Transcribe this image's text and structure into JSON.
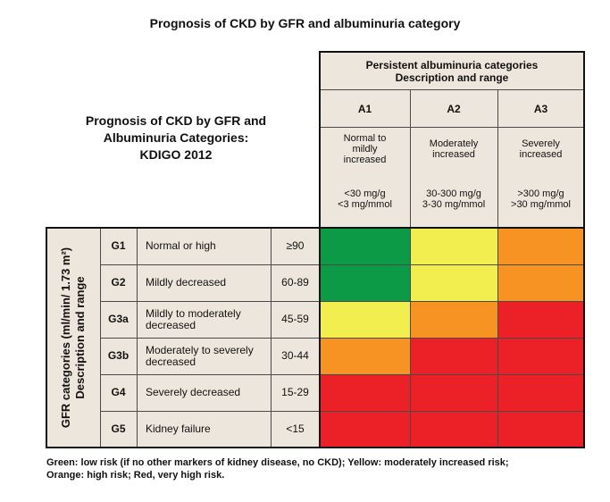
{
  "page_title": "Prognosis of CKD by GFR and albuminuria category",
  "left_header": "Prognosis of CKD by GFR and Albuminuria Categories: KDIGO 2012",
  "albuminuria_header": {
    "line1": "Persistent albuminuria categories",
    "line2": "Description and range"
  },
  "albuminuria": [
    {
      "code": "A1",
      "desc": "Normal to mildly increased",
      "range1": "<30 mg/g",
      "range2": "<3 mg/mmol"
    },
    {
      "code": "A2",
      "desc": "Moderately increased",
      "range1": "30-300 mg/g",
      "range2": "3-30 mg/mmol"
    },
    {
      "code": "A3",
      "desc": "Severely increased",
      "range1": ">300 mg/g",
      "range2": ">30 mg/mmol"
    }
  ],
  "gfr_header": {
    "line1": "GFR categories (ml/min/ 1.73 m²)",
    "line2": "Description and range"
  },
  "gfr": [
    {
      "code": "G1",
      "desc": "Normal or high",
      "range": "≥90",
      "risks": [
        "green",
        "yellow",
        "orange"
      ]
    },
    {
      "code": "G2",
      "desc": "Mildly decreased",
      "range": "60-89",
      "risks": [
        "green",
        "yellow",
        "orange"
      ]
    },
    {
      "code": "G3a",
      "desc": "Mildly to moderately decreased",
      "range": "45-59",
      "risks": [
        "yellow",
        "orange",
        "red"
      ]
    },
    {
      "code": "G3b",
      "desc": "Moderately to severely decreased",
      "range": "30-44",
      "risks": [
        "orange",
        "red",
        "red"
      ]
    },
    {
      "code": "G4",
      "desc": "Severely decreased",
      "range": "15-29",
      "risks": [
        "red",
        "red",
        "red"
      ]
    },
    {
      "code": "G5",
      "desc": "Kidney failure",
      "range": "<15",
      "risks": [
        "red",
        "red",
        "red"
      ]
    }
  ],
  "colors": {
    "green": "#0c9a47",
    "yellow": "#f3ee4f",
    "orange": "#f69322",
    "red": "#eb2127"
  },
  "legend": {
    "line1": "Green: low risk (if no other markers of kidney disease, no CKD); Yellow: moderately increased risk;",
    "line2": "Orange: high risk; Red, very high risk."
  }
}
